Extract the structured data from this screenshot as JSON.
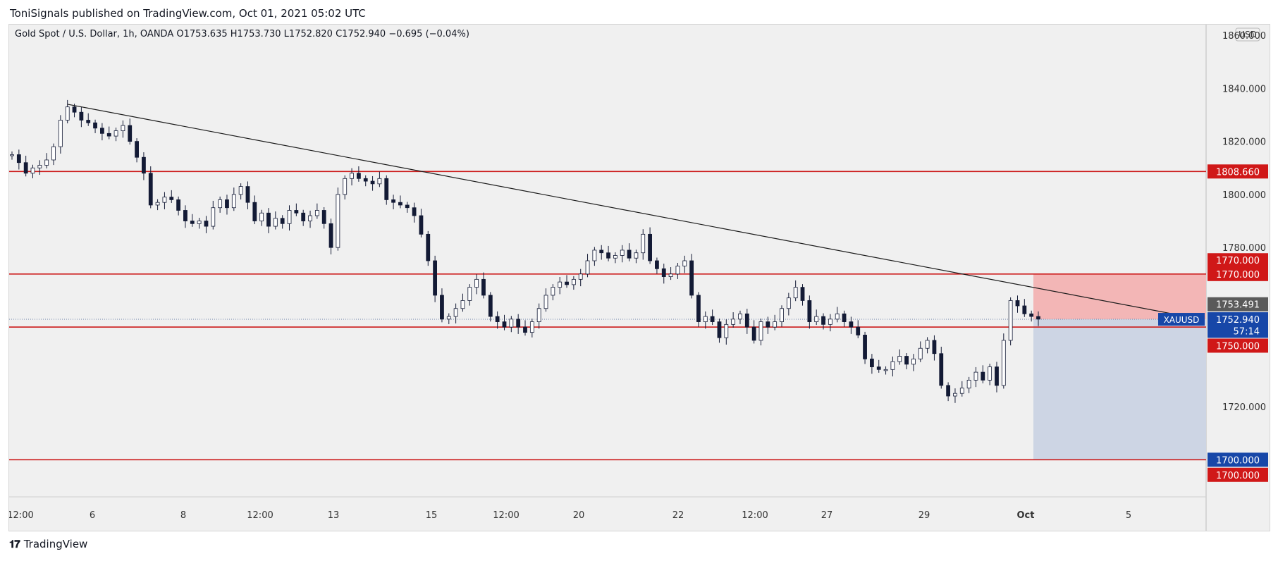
{
  "header": {
    "publisher": "ToniSignals published on TradingView.com, Oct 01, 2021 05:02 UTC",
    "legend": "Gold Spot / U.S. Dollar, 1h, OANDA  O1753.635  H1753.730  L1752.820  C1752.940  −0.695 (−0.04%)",
    "currency": "USD"
  },
  "footer": {
    "logo_icon": "tradingview-logo-icon",
    "brand": "TradingView"
  },
  "colors": {
    "background": "#f0f0f0",
    "candle_up": "#ffffff",
    "candle_down": "#131a35",
    "horizontal_line": "#cc1a1a",
    "trendline": "#1b1b1b",
    "stop_zone": "#f3b6b6",
    "target_zone": "#cdd5e4",
    "label_red": "#d01818",
    "label_blue": "#1747a8",
    "label_gray": "#5a5a5a"
  },
  "chart_data": {
    "type": "candlestick",
    "symbol": "XAUUSD",
    "x_ticks": [
      "12:00",
      "6",
      "8",
      "12:00",
      "13",
      "15",
      "12:00",
      "20",
      "22",
      "12:00",
      "27",
      "29",
      "Oct",
      "5"
    ],
    "y_ticks": [
      "1860.000",
      "1840.000",
      "1820.000",
      "1800.000",
      "1780.000",
      "1720.000"
    ],
    "ylim": [
      1686,
      1864
    ],
    "close_path": [
      1815,
      1812,
      1808,
      1810,
      1811,
      1813,
      1818,
      1828,
      1833,
      1831,
      1828,
      1827,
      1825,
      1823,
      1822,
      1824,
      1826,
      1820,
      1814,
      1808,
      1796,
      1797,
      1799,
      1798,
      1794,
      1790,
      1789,
      1790,
      1788,
      1795,
      1798,
      1795,
      1800,
      1803,
      1797,
      1790,
      1793,
      1788,
      1791,
      1789,
      1794,
      1793,
      1790,
      1792,
      1794,
      1789,
      1780,
      1800,
      1806,
      1808,
      1806,
      1805,
      1804,
      1806,
      1798,
      1797,
      1796,
      1795,
      1792,
      1785,
      1775,
      1762,
      1753,
      1754,
      1757,
      1760,
      1765,
      1768,
      1762,
      1754,
      1752,
      1750,
      1753,
      1750,
      1748,
      1752,
      1757,
      1762,
      1765,
      1767,
      1766,
      1768,
      1770,
      1775,
      1779,
      1778,
      1776,
      1777,
      1779,
      1776,
      1778,
      1785,
      1775,
      1772,
      1769,
      1770,
      1773,
      1775,
      1762,
      1752,
      1754,
      1752,
      1746,
      1751,
      1753,
      1755,
      1750,
      1745,
      1752,
      1750,
      1752,
      1757,
      1761,
      1765,
      1760,
      1752,
      1754,
      1751,
      1753,
      1755,
      1752,
      1750,
      1747,
      1738,
      1735,
      1734,
      1734,
      1737,
      1739,
      1736,
      1738,
      1742,
      1745,
      1740,
      1728,
      1724,
      1725,
      1727,
      1730,
      1733,
      1730,
      1735,
      1728,
      1745,
      1760,
      1758,
      1755,
      1754,
      1753
    ],
    "close_path_note_removed": true,
    "current_price_line": 1752.94,
    "horizontal_levels": [
      1808.66,
      1770.0,
      1750.0,
      1700.0
    ],
    "trendline": {
      "from": {
        "index": 8,
        "price": 1834
      },
      "to": {
        "index": 155,
        "price": 1753
      }
    },
    "position": {
      "entry": 1752.94,
      "stop": 1770.0,
      "target": 1700.0,
      "countdown": "57:14"
    },
    "price_labels": [
      {
        "text": "1808.660",
        "price": 1808.66,
        "color": "red"
      },
      {
        "text": "1770.000",
        "price": 1775.2,
        "color": "red"
      },
      {
        "text": "1770.000",
        "price": 1770.0,
        "color": "red"
      },
      {
        "text": "1753.491",
        "price": 1758.6,
        "color": "gray"
      },
      {
        "text": "1752.940",
        "price": 1752.94,
        "color": "blue"
      },
      {
        "text": "57:14",
        "price": 1748.6,
        "color": "blue"
      },
      {
        "text": "1750.000",
        "price": 1743.0,
        "color": "red"
      },
      {
        "text": "1700.000",
        "price": 1700.0,
        "color": "blue"
      },
      {
        "text": "1700.000",
        "price": 1694.3,
        "color": "red"
      }
    ],
    "series_tag": "XAUUSD"
  }
}
